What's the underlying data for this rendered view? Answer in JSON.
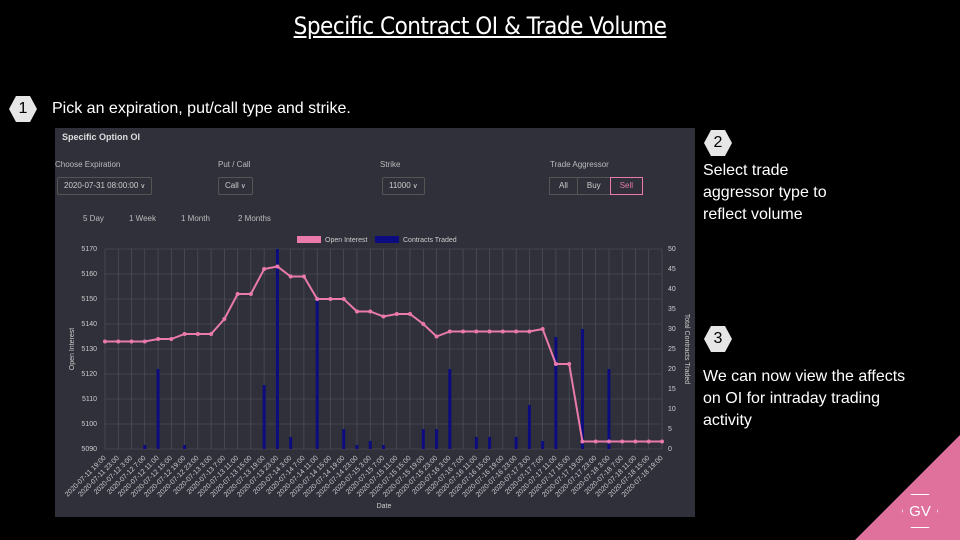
{
  "slide": {
    "title": "Specific Contract OI & Trade Volume",
    "steps": [
      {
        "number": 1,
        "text": "Pick an expiration, put/call type and strike."
      },
      {
        "number": 2,
        "text": "Select trade aggressor type to reflect volume"
      },
      {
        "number": 3,
        "text": "We can now view the affects on OI for intraday trading activity"
      }
    ],
    "logo": "GV"
  },
  "panel": {
    "title": "Specific Option OI",
    "filters": [
      {
        "label": "Choose Expiration",
        "value": "2020-07-31 08:00:00"
      },
      {
        "label": "Put / Call",
        "value": "Call"
      },
      {
        "label": "Strike",
        "value": "11000"
      }
    ],
    "aggressor": {
      "label": "Trade Aggressor",
      "options": [
        "All",
        "Buy",
        "Sell"
      ]
    },
    "ranges": [
      "5 Day",
      "1 Week",
      "1 Month",
      "2 Months"
    ]
  },
  "chart_data": {
    "type": "combo",
    "xlabel": "Date",
    "ylabel": "Open Interest",
    "y2label": "Total Contracts Traded",
    "categories": [
      "2020-07-11 19:00",
      "2020-07-11 23:00",
      "2020-07-12 3:00",
      "2020-07-12 7:00",
      "2020-07-12 11:00",
      "2020-07-12 15:00",
      "2020-07-12 19:00",
      "2020-07-12 23:00",
      "2020-07-13 3:00",
      "2020-07-13 7:00",
      "2020-07-13 11:00",
      "2020-07-13 15:00",
      "2020-07-13 19:00",
      "2020-07-13 23:00",
      "2020-07-14 3:00",
      "2020-07-14 7:00",
      "2020-07-14 11:00",
      "2020-07-14 15:00",
      "2020-07-14 19:00",
      "2020-07-14 23:00",
      "2020-07-15 3:00",
      "2020-07-15 7:00",
      "2020-07-15 11:00",
      "2020-07-15 15:00",
      "2020-07-15 19:00",
      "2020-07-15 23:00",
      "2020-07-16 3:00",
      "2020-07-16 7:00",
      "2020-07-16 11:00",
      "2020-07-16 15:00",
      "2020-07-16 19:00",
      "2020-07-16 23:00",
      "2020-07-17 3:00",
      "2020-07-17 7:00",
      "2020-07-17 11:00",
      "2020-07-17 15:00",
      "2020-07-17 19:00",
      "2020-07-17 23:00",
      "2020-07-18 3:00",
      "2020-07-18 7:00",
      "2020-07-18 11:00",
      "2020-07-18 15:00",
      "2020-07-18 19:00"
    ],
    "series": [
      {
        "name": "Open Interest",
        "type": "line",
        "color": "#e97aab",
        "values": [
          5133,
          5133,
          5133,
          5133,
          5134,
          5134,
          5136,
          5136,
          5136,
          5142,
          5152,
          5152,
          5162,
          5163,
          5159,
          5159,
          5150,
          5150,
          5150,
          5145,
          5145,
          5143,
          5144,
          5144,
          5140,
          5135,
          5137,
          5137,
          5137,
          5137,
          5137,
          5137,
          5137,
          5138,
          5124,
          5124,
          5093,
          5093,
          5093,
          5093,
          5093,
          5093,
          5093
        ]
      },
      {
        "name": "Contracts Traded",
        "type": "bar",
        "axis": "y2",
        "color": "#0c0c80",
        "values": [
          0,
          0,
          0,
          1,
          20,
          0,
          1,
          0,
          0,
          0,
          0,
          0,
          16,
          50,
          3,
          0,
          38,
          0,
          5,
          1,
          2,
          1,
          0,
          0,
          5,
          5,
          20,
          0,
          3,
          3,
          0,
          3,
          11,
          2,
          28,
          0,
          30,
          0,
          20,
          0,
          0,
          0,
          0
        ]
      }
    ],
    "ylim": [
      5090,
      5170
    ],
    "yticks": [
      5090,
      5100,
      5110,
      5120,
      5130,
      5140,
      5150,
      5160,
      5170
    ],
    "y2lim": [
      0,
      50
    ],
    "y2ticks": [
      0,
      5,
      10,
      15,
      20,
      25,
      30,
      35,
      40,
      45,
      50
    ],
    "grid": true
  }
}
